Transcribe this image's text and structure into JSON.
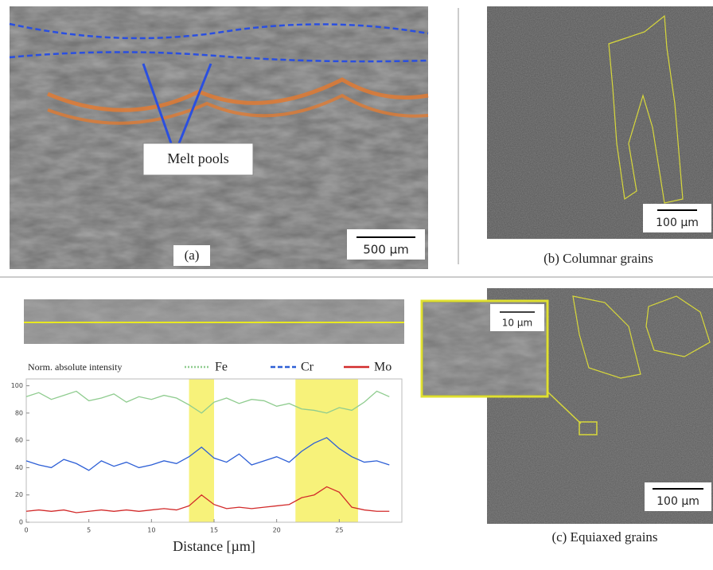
{
  "panel_a": {
    "annotation": "Melt pools",
    "scale_bar": "500 µm",
    "label": "(a)"
  },
  "panel_b": {
    "scale_bar": "100 µm",
    "caption": "(b) Columnar grains"
  },
  "panel_c": {
    "inset_scale_bar": "10 µm",
    "scale_bar": "100 µm",
    "caption": "(c) Equiaxed grains"
  },
  "chart_data": {
    "type": "line",
    "y_label": "Norm. absolute intensity",
    "x_label": "Distance [µm]",
    "x": [
      0,
      1,
      2,
      3,
      4,
      5,
      6,
      7,
      8,
      9,
      10,
      11,
      12,
      13,
      14,
      15,
      16,
      17,
      18,
      19,
      20,
      21,
      22,
      23,
      24,
      25,
      26,
      27,
      28,
      29
    ],
    "series": [
      {
        "name": "Fe",
        "color": "#8fcc8f",
        "values": [
          92,
          95,
          90,
          93,
          96,
          89,
          91,
          94,
          88,
          92,
          90,
          93,
          91,
          86,
          80,
          88,
          91,
          87,
          90,
          89,
          85,
          87,
          83,
          82,
          80,
          84,
          82,
          88,
          96,
          92
        ]
      },
      {
        "name": "Cr",
        "color": "#2d5fd6",
        "values": [
          45,
          42,
          40,
          46,
          43,
          38,
          45,
          41,
          44,
          40,
          42,
          45,
          43,
          48,
          55,
          47,
          44,
          50,
          42,
          45,
          48,
          44,
          52,
          58,
          62,
          54,
          48,
          44,
          45,
          42
        ]
      },
      {
        "name": "Mo",
        "color": "#d22a2a",
        "values": [
          8,
          9,
          8,
          9,
          7,
          8,
          9,
          8,
          9,
          8,
          9,
          10,
          9,
          12,
          20,
          13,
          10,
          11,
          10,
          11,
          12,
          13,
          18,
          20,
          26,
          22,
          11,
          9,
          8,
          8
        ]
      }
    ],
    "highlight_ranges": [
      [
        13,
        15
      ],
      [
        21.5,
        26.5
      ]
    ],
    "highlight_color": "#f7f27a",
    "xlim": [
      0,
      30
    ],
    "ylim": [
      0,
      105
    ],
    "xticks": [
      0,
      5,
      10,
      15,
      20,
      25
    ],
    "yticks": [
      0,
      20,
      40,
      60,
      80,
      100
    ]
  }
}
